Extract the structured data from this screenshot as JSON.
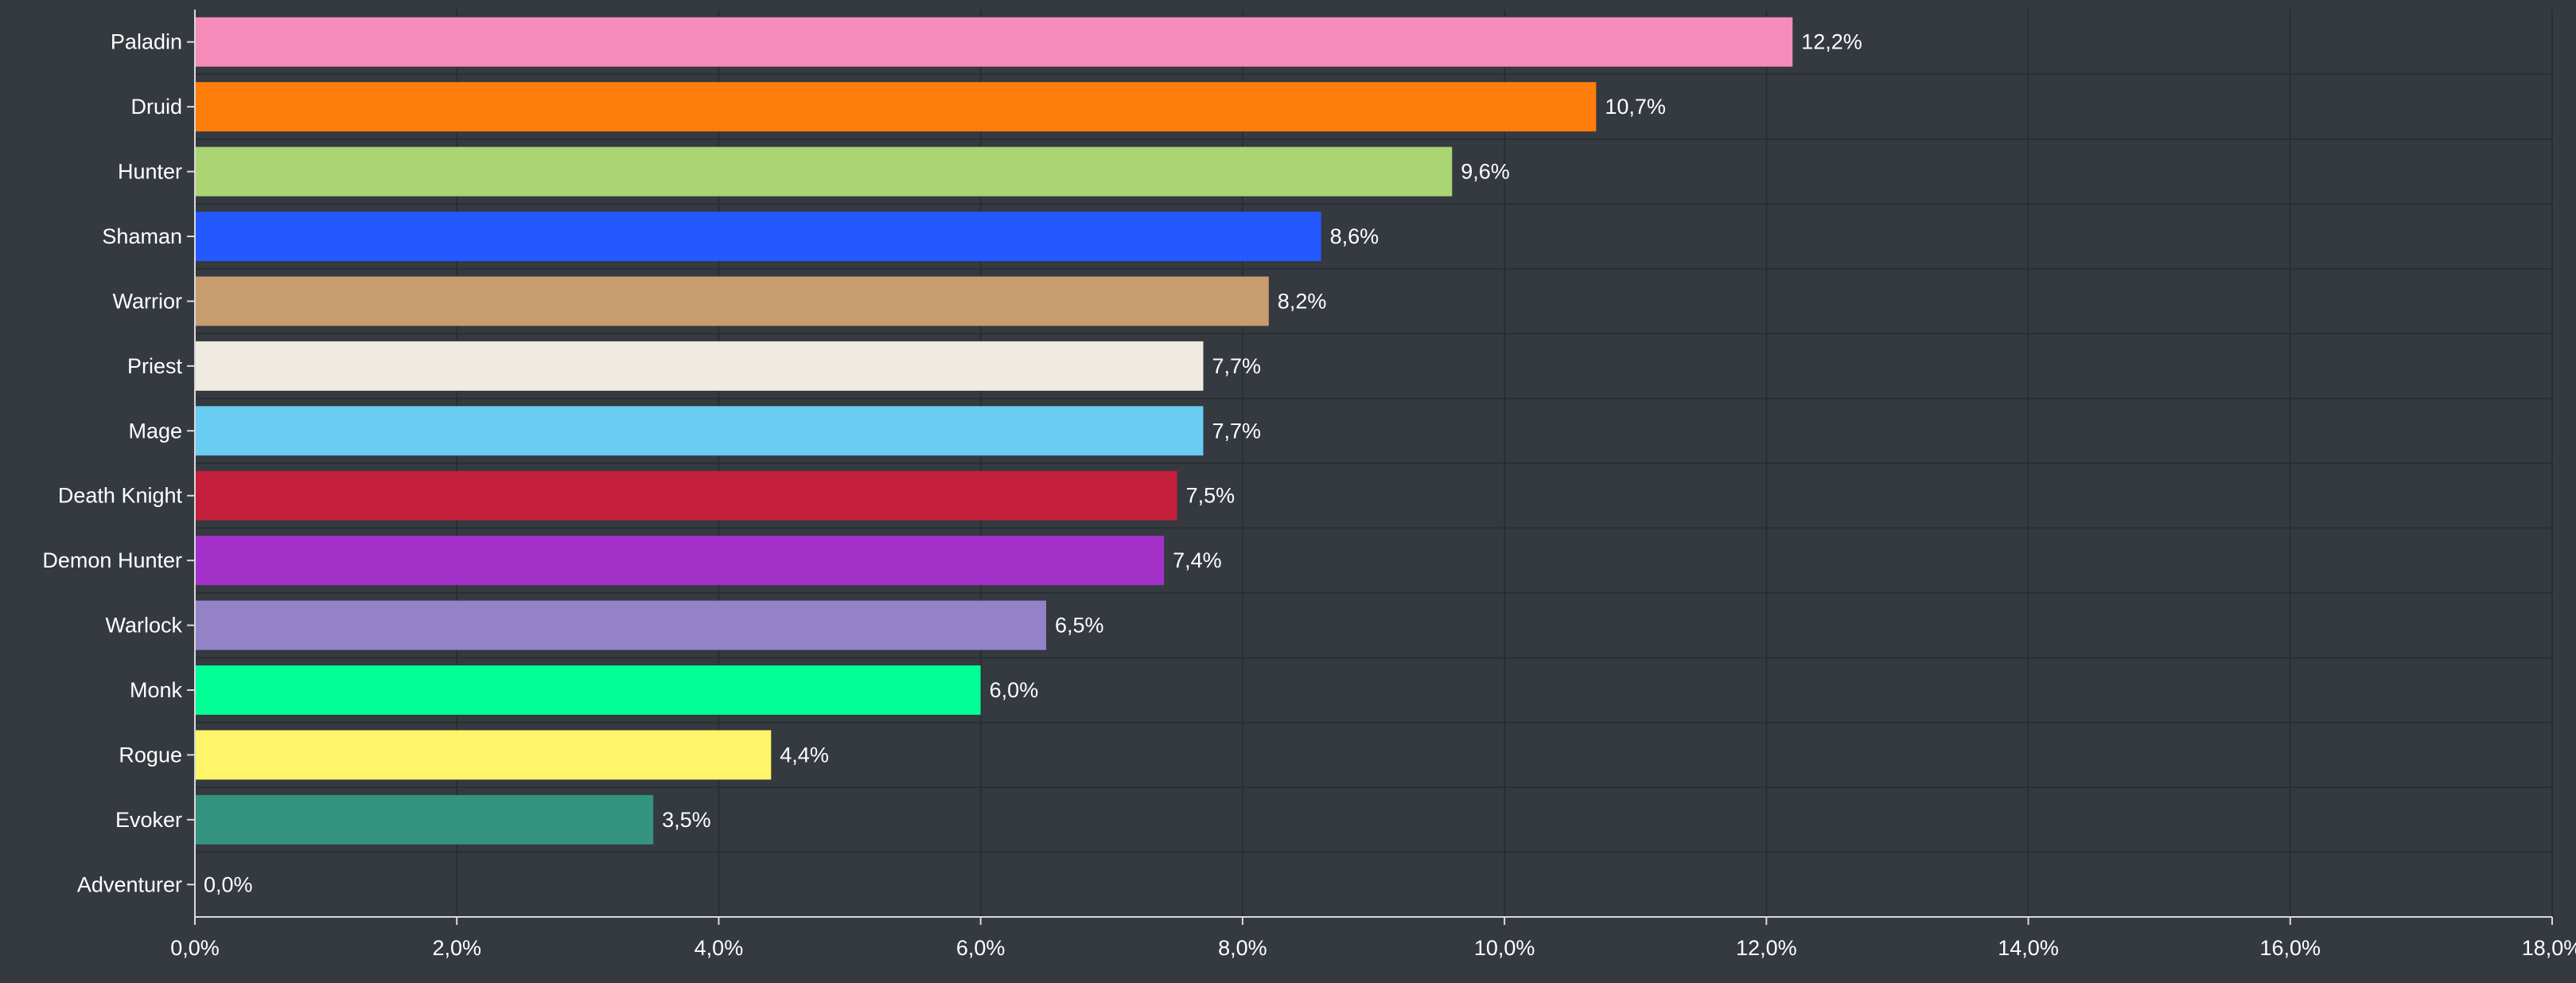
{
  "chart_data": {
    "type": "bar",
    "orientation": "horizontal",
    "categories": [
      "Paladin",
      "Druid",
      "Hunter",
      "Shaman",
      "Warrior",
      "Priest",
      "Mage",
      "Death Knight",
      "Demon Hunter",
      "Warlock",
      "Monk",
      "Rogue",
      "Evoker",
      "Adventurer"
    ],
    "values": [
      12.2,
      10.7,
      9.6,
      8.6,
      8.2,
      7.7,
      7.7,
      7.5,
      7.4,
      6.5,
      6.0,
      4.4,
      3.5,
      0.0
    ],
    "value_labels": [
      "12,2%",
      "10,7%",
      "9,6%",
      "8,6%",
      "8,2%",
      "7,7%",
      "7,7%",
      "7,5%",
      "7,4%",
      "6,5%",
      "6,0%",
      "4,4%",
      "3,5%",
      "0,0%"
    ],
    "colors": [
      "#f58cba",
      "#ff7d0a",
      "#abd473",
      "#2459ff",
      "#c79c6e",
      "#f0ebe0",
      "#69ccf0",
      "#c41f3b",
      "#a330c9",
      "#9482c9",
      "#00ff96",
      "#fff569",
      "#33937f",
      "#7f7f7f"
    ],
    "xlim": [
      0,
      18
    ],
    "xticks": [
      0,
      2,
      4,
      6,
      8,
      10,
      12,
      14,
      16,
      18
    ],
    "xtick_labels": [
      "0,0%",
      "2,0%",
      "4,0%",
      "6,0%",
      "8,0%",
      "10,0%",
      "12,0%",
      "14,0%",
      "16,0%",
      "18,0%"
    ],
    "title": "",
    "xlabel": "",
    "ylabel": "",
    "grid": true,
    "background": "#343a40",
    "text_color": "#ffffff"
  }
}
